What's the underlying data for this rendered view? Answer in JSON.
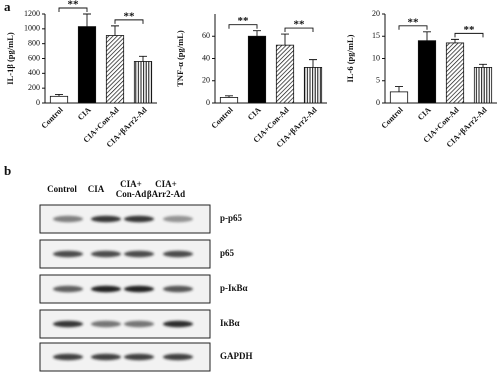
{
  "panel_labels": [
    "a",
    "b"
  ],
  "chart_data": [
    {
      "type": "bar",
      "y_label": "IL-1β (pg/mL)",
      "categories": [
        "Control",
        "CIA",
        "CIA+Con-Ad",
        "CIA+βArr2-Ad"
      ],
      "values": [
        90,
        1030,
        910,
        560
      ],
      "errors": [
        25,
        170,
        130,
        70
      ],
      "fills": [
        "white",
        "black",
        "hatch-diagonal",
        "hatch-vertical"
      ],
      "ylim": [
        0,
        1200
      ],
      "yticks": [
        0,
        200,
        400,
        600,
        800,
        1000,
        1200
      ],
      "comparisons": [
        {
          "label": "**",
          "between": [
            "Control",
            "CIA"
          ]
        },
        {
          "label": "**",
          "between": [
            "CIA+Con-Ad",
            "CIA+βArr2-Ad"
          ]
        }
      ]
    },
    {
      "type": "bar",
      "y_label": "TNF-α (pg/mL)",
      "categories": [
        "Control",
        "CIA",
        "CIA+Con-Ad",
        "CIA+βArr2-Ad"
      ],
      "values": [
        5,
        60,
        52,
        32
      ],
      "errors": [
        1.5,
        5,
        10,
        7
      ],
      "fills": [
        "white",
        "black",
        "hatch-diagonal",
        "hatch-vertical"
      ],
      "ylim": [
        0,
        80
      ],
      "yticks": [
        0,
        20,
        40,
        60
      ],
      "comparisons": [
        {
          "label": "**",
          "between": [
            "Control",
            "CIA"
          ]
        },
        {
          "label": "**",
          "between": [
            "CIA+Con-Ad",
            "CIA+βArr2-Ad"
          ]
        }
      ]
    },
    {
      "type": "bar",
      "y_label": "IL-6 (pg/mL)",
      "categories": [
        "Control",
        "CIA",
        "CIA+Con-Ad",
        "CIA+βArr2-Ad"
      ],
      "values": [
        2.5,
        14,
        13.5,
        8
      ],
      "errors": [
        1.2,
        2,
        0.8,
        0.7
      ],
      "fills": [
        "white",
        "black",
        "hatch-diagonal",
        "hatch-vertical"
      ],
      "ylim": [
        0,
        20
      ],
      "yticks": [
        0,
        5,
        10,
        15,
        20
      ],
      "comparisons": [
        {
          "label": "**",
          "between": [
            "Control",
            "CIA"
          ]
        },
        {
          "label": "**",
          "between": [
            "CIA+Con-Ad",
            "CIA+βArr2-Ad"
          ]
        }
      ]
    }
  ],
  "blot": {
    "lanes": [
      [
        "Control"
      ],
      [
        "CIA"
      ],
      [
        "CIA+",
        "Con-Ad"
      ],
      [
        "CIA+",
        "βArr2-Ad"
      ]
    ],
    "proteins": [
      "p-p65",
      "p65",
      "p-IκBα",
      "IκBα",
      "GAPDH"
    ]
  }
}
